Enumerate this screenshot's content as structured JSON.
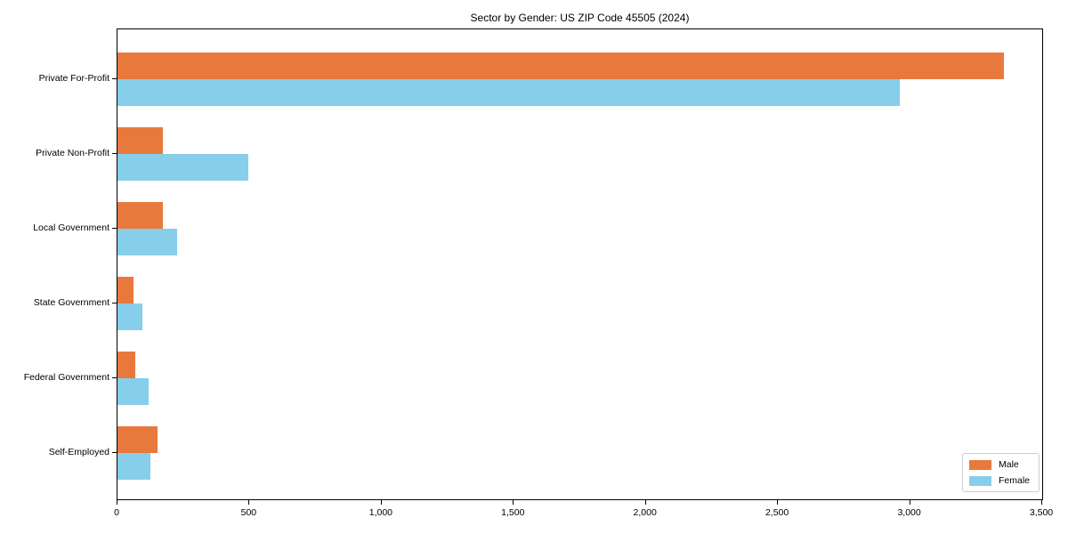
{
  "title": "Sector by Gender: US ZIP Code 45505 (2024)",
  "chart_data": {
    "type": "bar",
    "orientation": "horizontal",
    "title": "Sector by Gender: US ZIP Code 45505 (2024)",
    "categories": [
      "Private For-Profit",
      "Private Non-Profit",
      "Local Government",
      "State Government",
      "Federal Government",
      "Self-Employed"
    ],
    "series": [
      {
        "name": "Male",
        "color": "#e8793d",
        "values": [
          3356,
          173,
          172,
          62,
          66,
          150
        ]
      },
      {
        "name": "Female",
        "color": "#87ceeb",
        "values": [
          2962,
          495,
          224,
          94,
          117,
          123
        ]
      }
    ],
    "xlabel": "",
    "ylabel": "",
    "xlim": [
      0,
      3500
    ],
    "xticks": [
      0,
      500,
      1000,
      1500,
      2000,
      2500,
      3000,
      3500
    ],
    "xtick_labels": [
      "0",
      "500",
      "1,000",
      "1,500",
      "2,000",
      "2,500",
      "3,000",
      "3,500"
    ],
    "grid": false,
    "legend_position": "lower right",
    "legend_labels": [
      "Male",
      "Female"
    ]
  }
}
